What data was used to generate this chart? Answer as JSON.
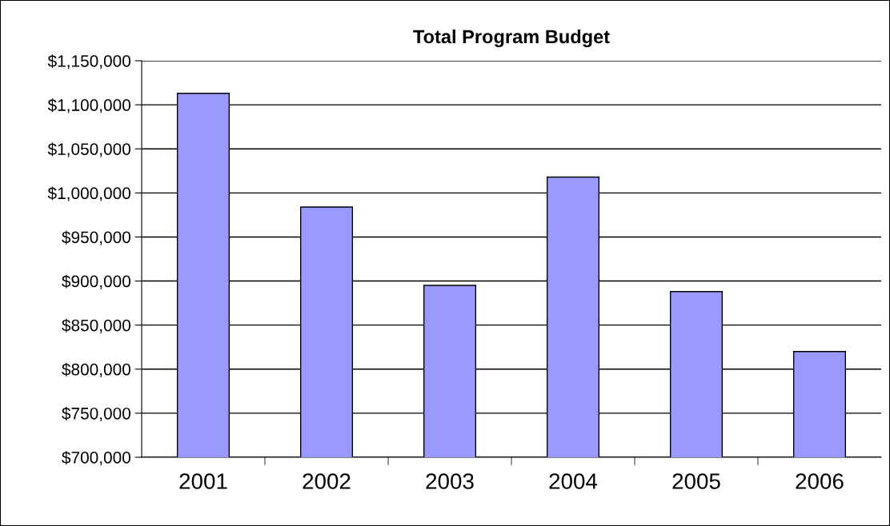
{
  "chart_data": {
    "type": "bar",
    "title": "Total Program Budget",
    "categories": [
      "2001",
      "2002",
      "2003",
      "2004",
      "2005",
      "2006"
    ],
    "values": [
      1113000,
      984000,
      895000,
      1018000,
      888000,
      820000
    ],
    "color": "#9999ff",
    "ylim": [
      700000,
      1150000
    ],
    "yticks": [
      {
        "value": 700000,
        "label": "$700,000"
      },
      {
        "value": 750000,
        "label": "$750,000"
      },
      {
        "value": 800000,
        "label": "$800,000"
      },
      {
        "value": 850000,
        "label": "$850,000"
      },
      {
        "value": 900000,
        "label": "$900,000"
      },
      {
        "value": 950000,
        "label": "$950,000"
      },
      {
        "value": 1000000,
        "label": "$1,000,000"
      },
      {
        "value": 1050000,
        "label": "$1,050,000"
      },
      {
        "value": 1100000,
        "label": "$1,100,000"
      },
      {
        "value": 1150000,
        "label": "$1,150,000"
      }
    ],
    "grid": "y",
    "legend": false
  }
}
